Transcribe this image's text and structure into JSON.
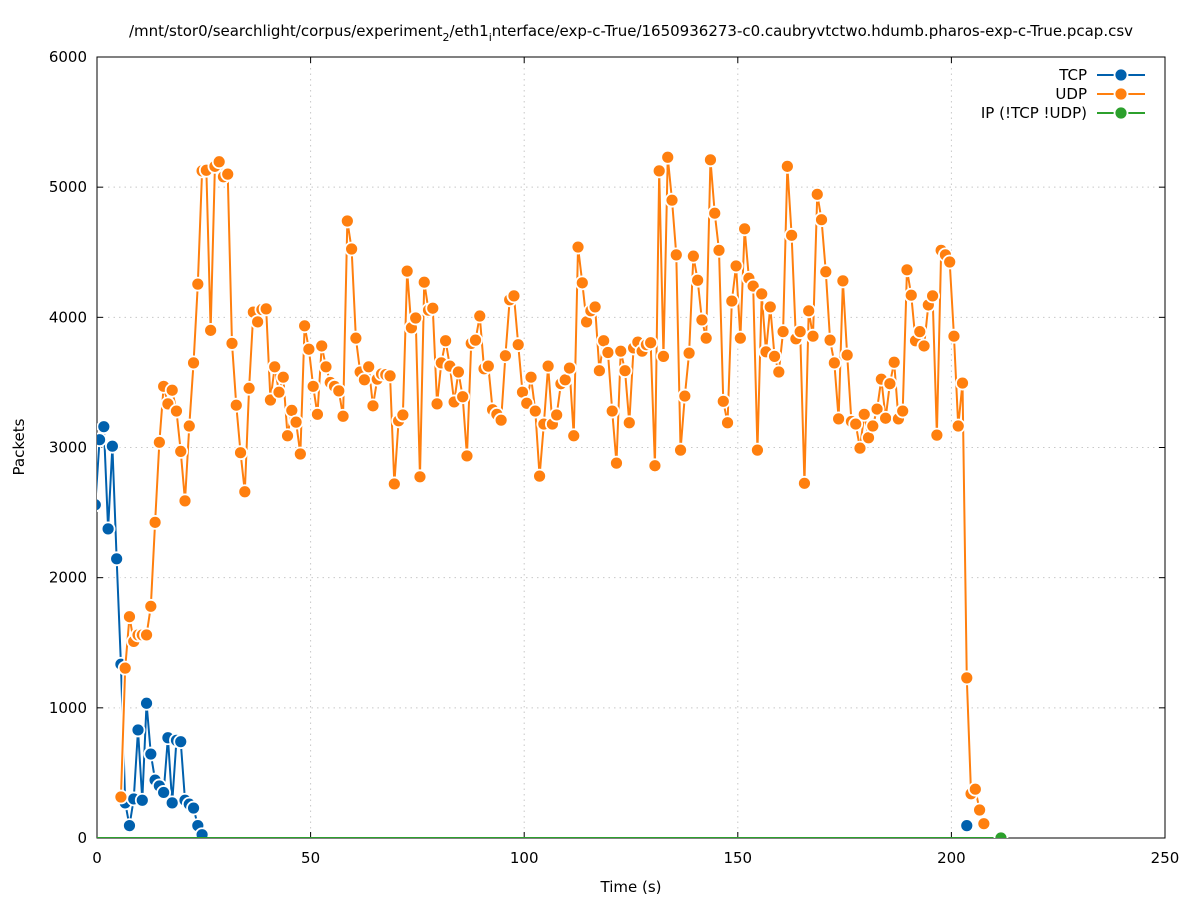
{
  "chart_data": {
    "type": "line",
    "title_parts": [
      "/mnt/stor0/searchlight/corpus/experiment",
      "2",
      "/eth1",
      "i",
      "nterface/exp-c-True/1650936273-c0.caubryvtctwo.hdumb.pharos-exp-c-True.pcap.csv"
    ],
    "xlabel": "Time (s)",
    "ylabel": "Packets",
    "xlim": [
      0,
      250
    ],
    "ylim": [
      0,
      6000
    ],
    "xticks": [
      0,
      50,
      100,
      150,
      200,
      250
    ],
    "yticks": [
      0,
      1000,
      2000,
      3000,
      4000,
      5000,
      6000
    ],
    "grid": true,
    "legend_position": "top-right",
    "series": [
      {
        "name": "TCP",
        "color": "#0060ad",
        "segments": [
          {
            "x_start": -0.4,
            "x_step": 1,
            "values": [
              2560,
              3060,
              3160,
              2375,
              3010,
              2145,
              1335,
              270,
              95,
              300,
              830,
              290,
              1035,
              645,
              445,
              400,
              350,
              770,
              270,
              750,
              740,
              290,
              260,
              230,
              95,
              25
            ]
          },
          {
            "x_start": 203.6,
            "x_step": 1,
            "values": [
              95
            ]
          }
        ]
      },
      {
        "name": "UDP",
        "color": "#ff7f0e",
        "segments": [
          {
            "x_start": 5.6,
            "x_step": 1,
            "values": [
              315,
              1305,
              1700,
              1510,
              1560,
              1560,
              1560,
              1780,
              2425,
              3040,
              3470,
              3335,
              3440,
              3280,
              2970,
              2590,
              3165,
              3650,
              4255,
              5125,
              5130,
              3900,
              5160,
              5195,
              5080,
              5100,
              3800,
              3325,
              2960,
              2660,
              3455,
              4040,
              3965,
              4060,
              4065,
              3365,
              3620,
              3425,
              3540,
              3090,
              3285,
              3195,
              2950,
              3935,
              3755,
              3470,
              3255,
              3780,
              3620,
              3500,
              3470,
              3435,
              3240,
              4740,
              4525,
              3840,
              3580,
              3520,
              3620,
              3320,
              3525,
              3565,
              3560,
              3550,
              2720,
              3205,
              3250,
              4355,
              3920,
              3995,
              2775,
              4270,
              4055,
              4070,
              3335,
              3650,
              3820,
              3625,
              3350,
              3580,
              3390,
              2935,
              3800,
              3825,
              4010,
              3605,
              3625,
              3290,
              3255,
              3210,
              3705,
              4135,
              4165,
              3790,
              3425,
              3340,
              3540,
              3280,
              2780,
              3180,
              3625,
              3180,
              3250,
              3490,
              3520,
              3610,
              3090,
              4540,
              4265,
              3965,
              4050,
              4080,
              3590,
              3820,
              3730,
              3280,
              2880,
              3740,
              3590,
              3190,
              3765,
              3810,
              3740,
              3790,
              3805,
              2860,
              5125,
              3700,
              5230,
              4900,
              4480,
              2980,
              3395,
              3725,
              4470,
              4285,
              3980,
              3840,
              5210,
              4800,
              4515,
              3355,
              3190,
              4125,
              4395,
              3840,
              4680,
              4300,
              4240,
              2980,
              4180,
              3735,
              4080,
              3700,
              3580,
              3890,
              5160,
              4630,
              3835,
              3890,
              2725,
              4050,
              3855,
              4945,
              4750,
              4350,
              3825,
              3650,
              3220,
              4280,
              3710,
              3200,
              3180,
              2995,
              3255,
              3075,
              3165,
              3295,
              3525,
              3225,
              3490,
              3655,
              3220,
              3280,
              4365,
              4170,
              3820,
              3890,
              3780,
              4095,
              4165,
              3095,
              4515,
              4480,
              4425,
              3855,
              3165,
              3495,
              1230,
              340,
              375,
              215,
              110
            ]
          }
        ]
      },
      {
        "name": "IP (!TCP  !UDP)",
        "color": "#2ca02c",
        "segments": [
          {
            "x_start": 211.6,
            "x_step": 1,
            "values": [
              0
            ]
          }
        ],
        "baseline_range": [
          -0.4,
          211.6
        ],
        "baseline_value": 0
      }
    ]
  }
}
